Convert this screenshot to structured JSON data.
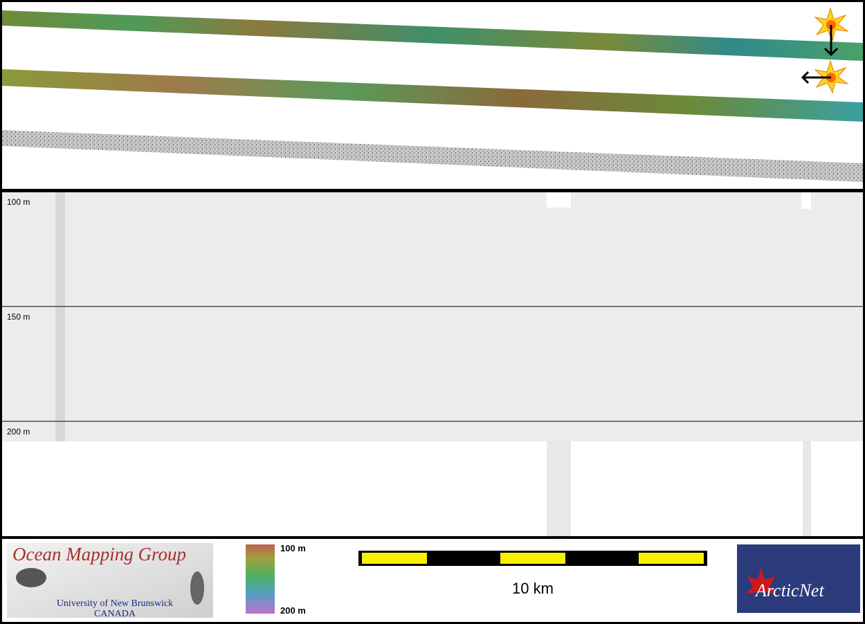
{
  "profile": {
    "depth_labels": [
      "100 m",
      "150 m",
      "200 m"
    ]
  },
  "footer": {
    "logo": {
      "title": "Ocean Mapping Group",
      "university": "University of New Brunswick",
      "country": "CANADA"
    },
    "colorbar": {
      "top_label": "100 m",
      "bottom_label": "200 m"
    },
    "scale_bar": {
      "label": "10 km"
    },
    "partner_logo": {
      "label": "ArcticNet"
    }
  }
}
